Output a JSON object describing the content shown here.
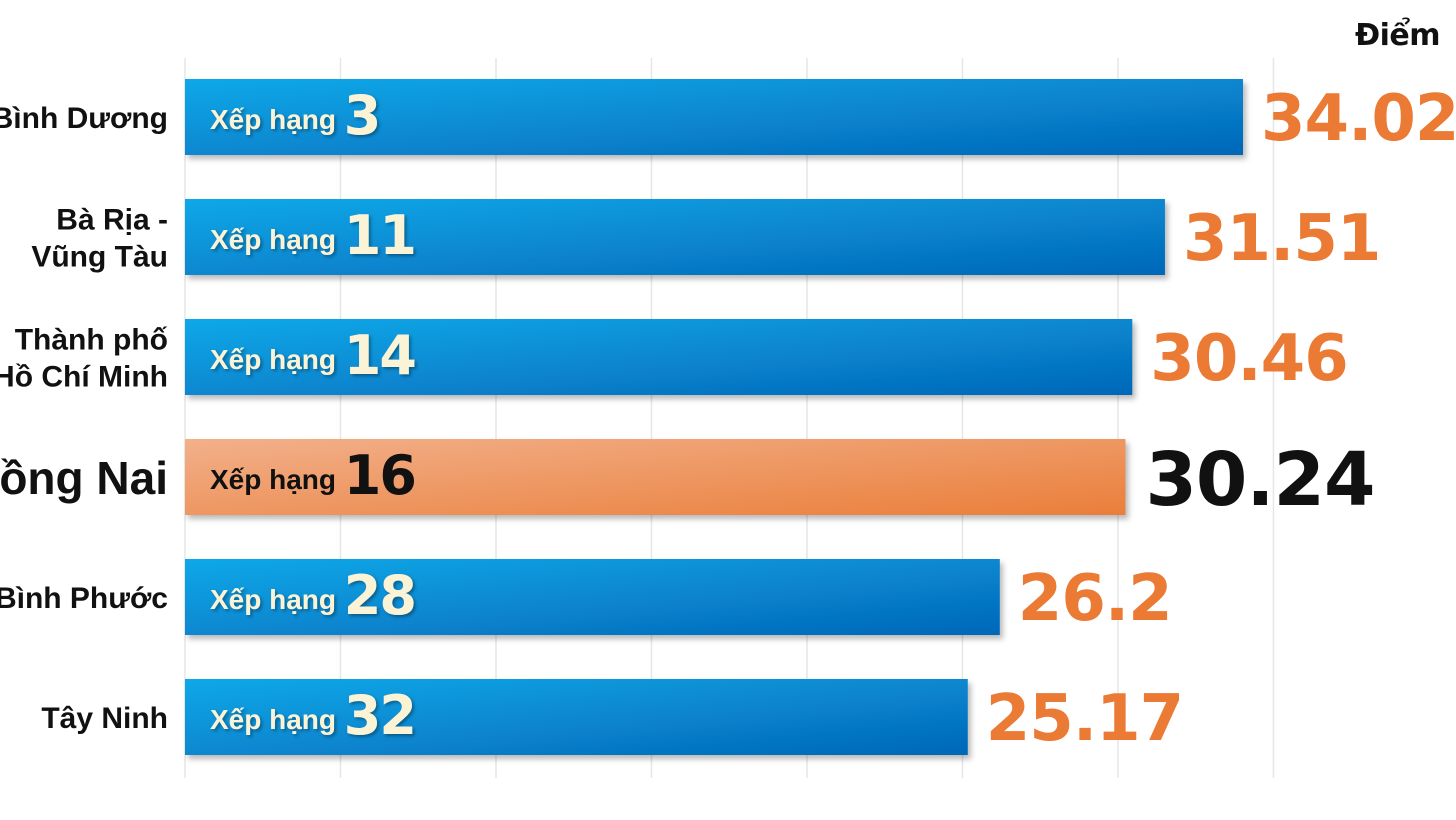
{
  "chart_data": {
    "type": "bar",
    "orientation": "horizontal",
    "unit_label": "Điểm",
    "rank_prefix": "Xếp hạng",
    "categories": [
      "Bình Dương",
      "Bà Rịa - Vũng Tàu",
      "Thành phố Hồ Chí Minh",
      "Đồng Nai",
      "Bình Phước",
      "Tây Ninh"
    ],
    "category_lines": [
      [
        "Bình Dương"
      ],
      [
        "Bà Rịa -",
        "Vũng Tàu"
      ],
      [
        "Thành phố",
        "Hồ Chí Minh"
      ],
      [
        "Đồng Nai"
      ],
      [
        "Bình Phước"
      ],
      [
        "Tây Ninh"
      ]
    ],
    "values": [
      34.02,
      31.51,
      30.46,
      30.24,
      26.2,
      25.17
    ],
    "value_labels": [
      "34.02",
      "31.51",
      "30.46",
      "30.24",
      "26.2",
      "25.17"
    ],
    "ranks": [
      "3",
      "11",
      "14",
      "16",
      "28",
      "32"
    ],
    "highlight_index": 3,
    "xlim": [
      0,
      35
    ],
    "grid": true,
    "colors": {
      "bar_top": "#0aa8e8",
      "bar_bottom": "#0567b8",
      "highlight_top": "#f2b08a",
      "highlight_bottom": "#ea7e3a",
      "value_text": "#ea7a34",
      "highlight_value_text": "#111111",
      "highlight_category_text": "#ea7a34",
      "rank_text": "#fbf3d6",
      "highlight_rank_text": "#111111",
      "category_text": "#111111",
      "grid": "#e6e6e6"
    }
  }
}
